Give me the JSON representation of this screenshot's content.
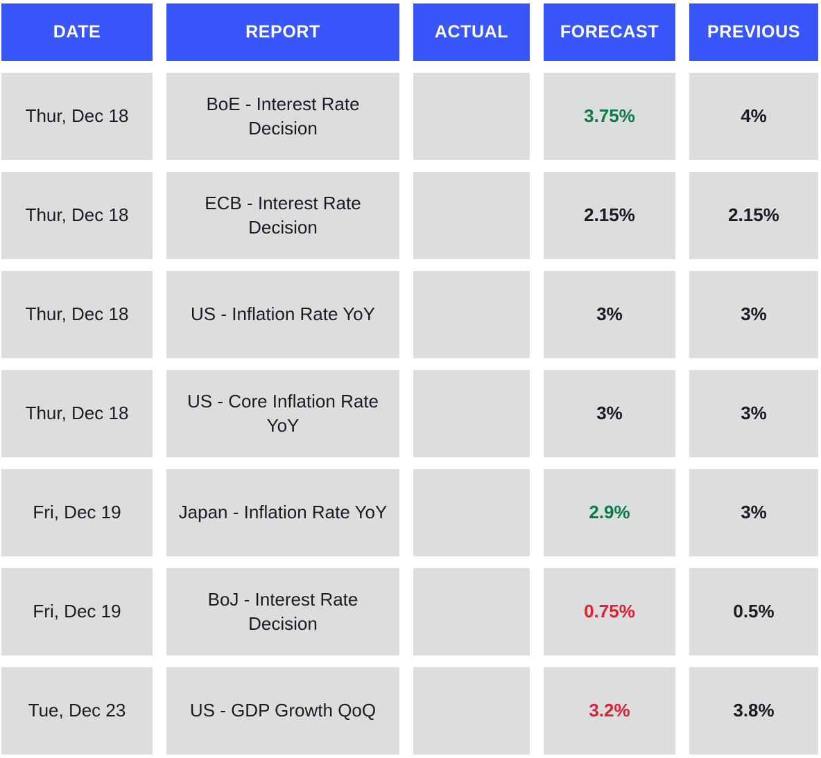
{
  "colors": {
    "header_bg": "#3956FA",
    "header_text": "#FFFFFF",
    "cell_bg": "#DBDDDE",
    "text": "#1A1C20",
    "green": "#0A7B44",
    "red": "#DA2332"
  },
  "table": {
    "columns": [
      {
        "key": "date",
        "label": "DATE"
      },
      {
        "key": "report",
        "label": "REPORT"
      },
      {
        "key": "actual",
        "label": "ACTUAL"
      },
      {
        "key": "forecast",
        "label": "FORECAST"
      },
      {
        "key": "previous",
        "label": "PREVIOUS"
      }
    ],
    "rows": [
      {
        "date": "Thur, Dec 18",
        "report": "BoE - Interest Rate Decision",
        "actual": "",
        "forecast": "3.75%",
        "forecast_color": "green",
        "previous": "4%"
      },
      {
        "date": "Thur, Dec 18",
        "report": "ECB - Interest Rate Decision",
        "actual": "",
        "forecast": "2.15%",
        "forecast_color": "black",
        "previous": "2.15%"
      },
      {
        "date": "Thur, Dec 18",
        "report": "US - Inflation Rate YoY",
        "actual": "",
        "forecast": "3%",
        "forecast_color": "black",
        "previous": "3%"
      },
      {
        "date": "Thur, Dec 18",
        "report": "US - Core Inflation Rate YoY",
        "actual": "",
        "forecast": "3%",
        "forecast_color": "black",
        "previous": "3%"
      },
      {
        "date": "Fri, Dec 19",
        "report": "Japan - Inflation Rate YoY",
        "actual": "",
        "forecast": "2.9%",
        "forecast_color": "green",
        "previous": "3%"
      },
      {
        "date": "Fri, Dec 19",
        "report": "BoJ - Interest Rate Decision",
        "actual": "",
        "forecast": "0.75%",
        "forecast_color": "red",
        "previous": "0.5%"
      },
      {
        "date": "Tue, Dec 23",
        "report": "US - GDP Growth QoQ",
        "actual": "",
        "forecast": "3.2%",
        "forecast_color": "red",
        "previous": "3.8%"
      }
    ]
  }
}
